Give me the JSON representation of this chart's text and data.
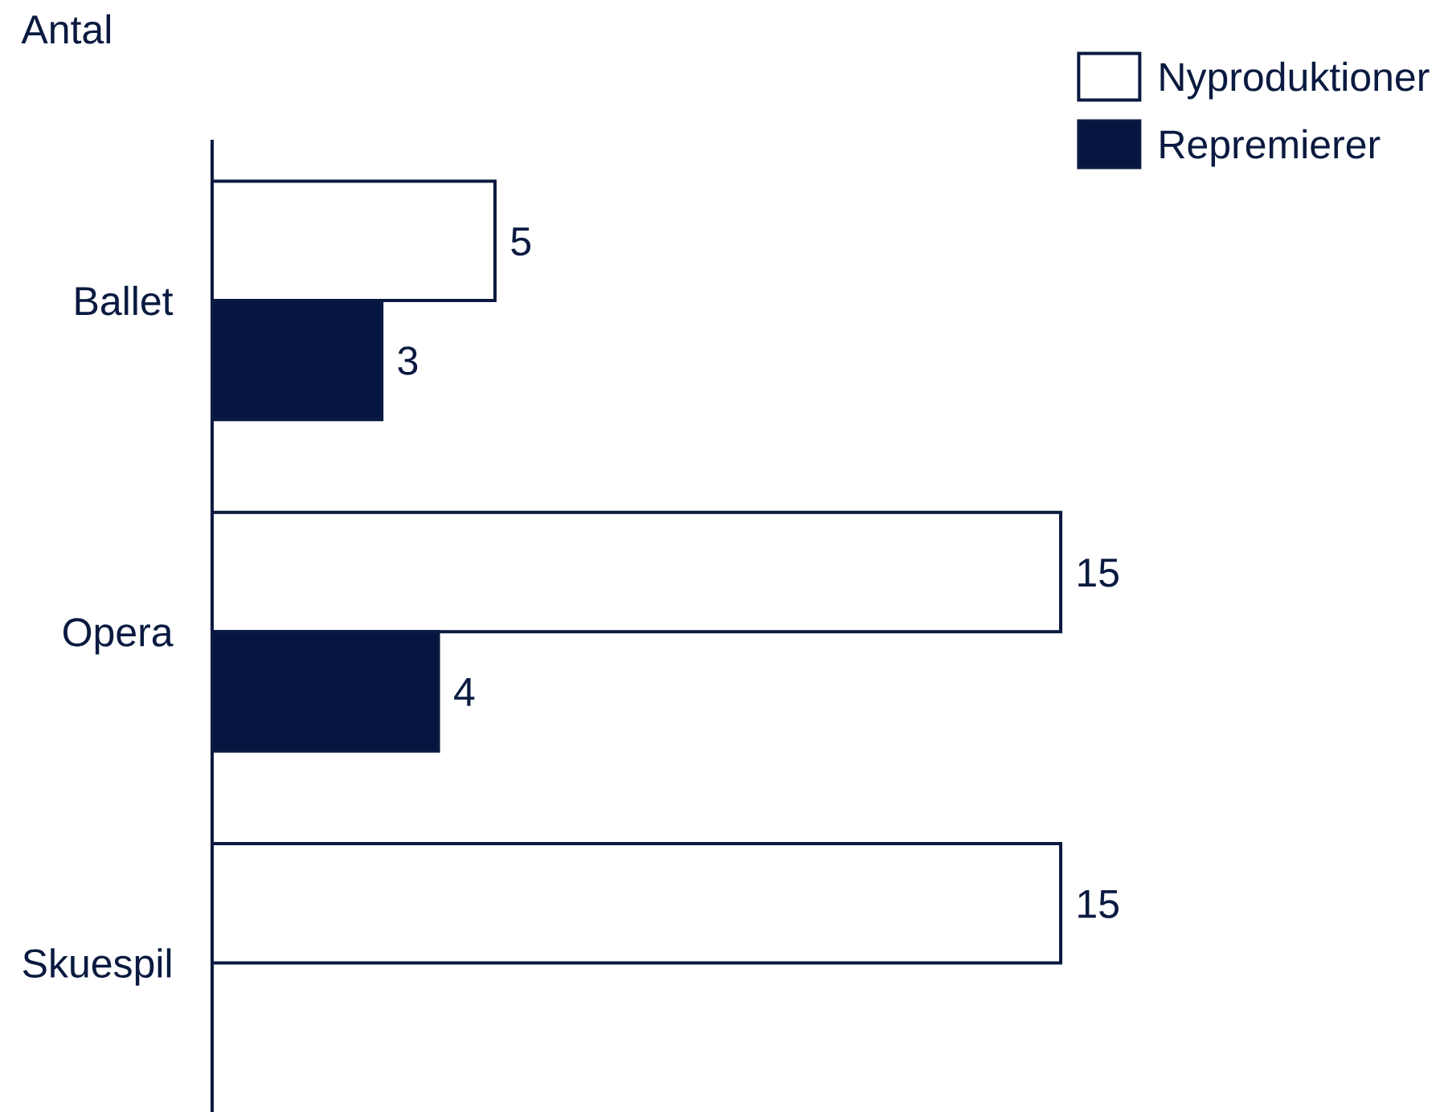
{
  "chart_data": {
    "type": "bar",
    "orientation": "horizontal",
    "xlabel": "Antal",
    "categories": [
      "Ballet",
      "Opera",
      "Skuespil"
    ],
    "series": [
      {
        "name": "Nyproduktioner",
        "color": "#ffffff",
        "values": [
          5,
          15,
          15
        ]
      },
      {
        "name": "Repremierer",
        "color": "#041640",
        "values": [
          3,
          4,
          null
        ]
      }
    ],
    "data_labels": true,
    "legend": "top right"
  }
}
